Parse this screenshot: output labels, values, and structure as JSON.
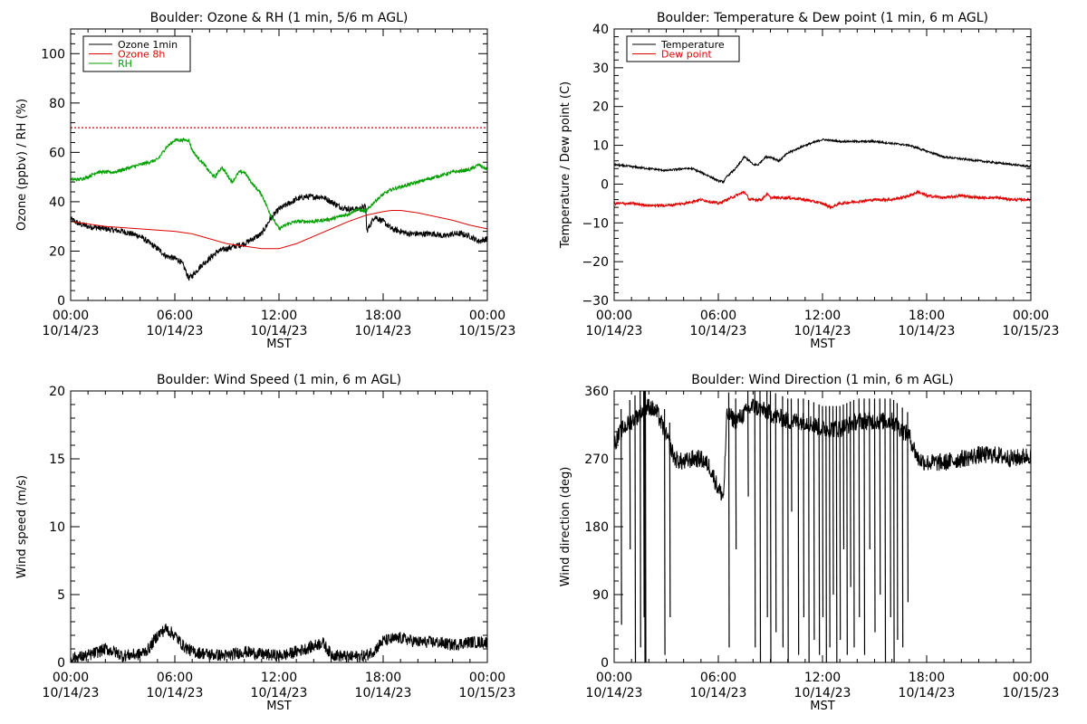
{
  "chart_data": [
    {
      "type": "line",
      "title": "Boulder: Ozone & RH (1 min, 5/6 m AGL)",
      "xlabel": "MST",
      "ylabel": "Ozone (ppbv) / RH (%)",
      "xlim": [
        "10/14/23 00:00",
        "10/15/23 00:00"
      ],
      "ylim": [
        0,
        110
      ],
      "x_ticks": [
        {
          "time": "00:00",
          "date": "10/14/23"
        },
        {
          "time": "06:00",
          "date": "10/14/23"
        },
        {
          "time": "12:00",
          "date": "10/14/23"
        },
        {
          "time": "18:00",
          "date": "10/14/23"
        },
        {
          "time": "00:00",
          "date": "10/15/23"
        }
      ],
      "y_ticks": [
        "0",
        "20",
        "40",
        "60",
        "80",
        "100"
      ],
      "legend_position": "top-left",
      "reference_line": {
        "value": 70,
        "style": "dotted",
        "color": "#e00000"
      },
      "series": [
        {
          "name": "Ozone 1min",
          "color": "#000000",
          "noise": 1.2,
          "x": [
            0,
            0.5,
            1,
            2,
            3,
            4,
            5,
            5.5,
            6,
            6.3,
            6.5,
            6.8,
            7,
            7.5,
            8,
            8.5,
            9,
            9.5,
            10,
            10.5,
            11,
            11.5,
            12,
            12.5,
            13,
            13.5,
            14,
            14.5,
            15,
            15.5,
            16,
            16.5,
            17,
            17.05,
            17.5,
            18,
            18.5,
            19,
            19.5,
            20,
            20.5,
            21,
            21.5,
            22,
            22.5,
            23,
            23.5,
            24
          ],
          "y": [
            33,
            31,
            30,
            29,
            28,
            26,
            21,
            18,
            17,
            16,
            14,
            9,
            10,
            14,
            17,
            20,
            21,
            22,
            23,
            25,
            27,
            33,
            37,
            39,
            41,
            42,
            42,
            42,
            40,
            38,
            37,
            37,
            38,
            28,
            34,
            32,
            29,
            28,
            27,
            27,
            27,
            27,
            26,
            27,
            27,
            26,
            24,
            25
          ]
        },
        {
          "name": "Ozone 8h",
          "color": "#e00000",
          "noise": 0,
          "x": [
            0,
            2,
            4,
            6,
            7,
            8,
            9,
            10,
            11,
            12,
            13,
            14,
            15,
            16,
            17,
            18,
            18.5,
            19,
            20,
            21,
            22,
            23,
            24
          ],
          "y": [
            32,
            30,
            29,
            28,
            27,
            25,
            23,
            22,
            21,
            21,
            23,
            26,
            29,
            32,
            34.5,
            36,
            36.5,
            36.5,
            35.5,
            34,
            32.5,
            30.5,
            29
          ]
        },
        {
          "name": "RH",
          "color": "#00a000",
          "noise": 0.7,
          "x": [
            0,
            0.5,
            1,
            1.5,
            2,
            2.5,
            3,
            3.5,
            4,
            4.5,
            5,
            5.5,
            6,
            6.5,
            6.8,
            7,
            7.3,
            7.7,
            8,
            8.3,
            8.7,
            9,
            9.3,
            9.7,
            10,
            10.5,
            11,
            11.5,
            12,
            12.5,
            13,
            14,
            15,
            16,
            16.5,
            17,
            17.5,
            18,
            18.5,
            19,
            20,
            21,
            22,
            23,
            23.5,
            24
          ],
          "y": [
            49,
            49,
            50,
            52,
            52,
            52,
            53,
            54,
            55,
            56,
            57,
            62,
            65,
            65,
            65,
            61,
            58,
            55,
            52,
            50,
            54,
            51,
            48,
            52,
            52,
            47,
            43,
            35,
            29,
            31,
            32,
            32,
            33,
            35,
            37,
            36,
            40,
            43,
            45,
            46,
            48,
            50,
            52,
            53,
            55,
            53
          ]
        }
      ]
    },
    {
      "type": "line",
      "title": "Boulder: Temperature & Dew point (1 min, 6 m AGL)",
      "xlabel": "MST",
      "ylabel": "Temperature / Dew point (C)",
      "xlim": [
        "10/14/23 00:00",
        "10/15/23 00:00"
      ],
      "ylim": [
        -30,
        40
      ],
      "x_ticks": [
        {
          "time": "00:00",
          "date": "10/14/23"
        },
        {
          "time": "06:00",
          "date": "10/14/23"
        },
        {
          "time": "12:00",
          "date": "10/14/23"
        },
        {
          "time": "18:00",
          "date": "10/14/23"
        },
        {
          "time": "00:00",
          "date": "10/15/23"
        }
      ],
      "y_ticks": [
        "−30",
        "−20",
        "−10",
        "0",
        "10",
        "20",
        "30",
        "40"
      ],
      "legend_position": "top-left",
      "series": [
        {
          "name": "Temperature",
          "color": "#000000",
          "noise": 0.25,
          "x": [
            0,
            1,
            2,
            3,
            4,
            4.5,
            5,
            5.5,
            6,
            6.3,
            6.5,
            7,
            7.5,
            7.8,
            8,
            8.3,
            8.7,
            9,
            9.5,
            10,
            11,
            12,
            13,
            14,
            15,
            16,
            17,
            18,
            19,
            20,
            21,
            22,
            23,
            24
          ],
          "y": [
            5,
            4.5,
            4,
            3.5,
            4,
            4,
            3,
            2,
            0.8,
            0.6,
            2,
            4,
            7,
            6,
            5,
            5,
            7,
            7,
            6,
            8,
            10,
            11.5,
            11,
            11,
            11,
            10.5,
            10,
            8.5,
            7,
            6.5,
            6,
            5.5,
            5,
            4.5
          ]
        },
        {
          "name": "Dew point",
          "color": "#e00000",
          "noise": 0.35,
          "x": [
            0,
            1,
            2,
            3,
            4,
            5,
            5.5,
            6,
            6.5,
            7,
            7.5,
            7.8,
            8,
            8.5,
            8.8,
            9,
            10,
            11,
            12,
            12.5,
            13,
            14,
            15,
            16,
            17,
            17.5,
            18,
            19,
            20,
            21,
            22,
            23,
            24
          ],
          "y": [
            -5,
            -5,
            -5.5,
            -5.5,
            -5,
            -4,
            -4.5,
            -5,
            -4,
            -3,
            -2,
            -4,
            -4,
            -4,
            -2.5,
            -3.5,
            -3.5,
            -4,
            -5,
            -6,
            -5,
            -4.5,
            -4,
            -4,
            -3,
            -2,
            -3,
            -3.5,
            -3,
            -3.5,
            -3.5,
            -4,
            -4
          ]
        }
      ]
    },
    {
      "type": "line",
      "title": "Boulder: Wind Speed (1 min, 6 m AGL)",
      "xlabel": "MST",
      "ylabel": "Wind speed (m/s)",
      "xlim": [
        "10/14/23 00:00",
        "10/15/23 00:00"
      ],
      "ylim": [
        0,
        20
      ],
      "x_ticks": [
        {
          "time": "00:00",
          "date": "10/14/23"
        },
        {
          "time": "06:00",
          "date": "10/14/23"
        },
        {
          "time": "12:00",
          "date": "10/14/23"
        },
        {
          "time": "18:00",
          "date": "10/14/23"
        },
        {
          "time": "00:00",
          "date": "10/15/23"
        }
      ],
      "y_ticks": [
        "0",
        "5",
        "10",
        "15",
        "20"
      ],
      "series": [
        {
          "name": "",
          "color": "#000000",
          "noise": 0.45,
          "clip_min": 0,
          "x": [
            0,
            1,
            2,
            2.5,
            3,
            4,
            4.5,
            5,
            5.5,
            6,
            6.5,
            7,
            8,
            9,
            10,
            11,
            12,
            12.5,
            13,
            14,
            14.5,
            15,
            16,
            17,
            17.5,
            18,
            19,
            20,
            21,
            22,
            23,
            24
          ],
          "y": [
            0.3,
            0.5,
            1,
            0.8,
            0.5,
            0.6,
            1,
            2,
            2.5,
            2,
            1.2,
            0.8,
            0.6,
            0.5,
            0.8,
            0.6,
            0.5,
            0.6,
            0.8,
            1.2,
            1.5,
            0.6,
            0.4,
            0.5,
            0.9,
            1.6,
            1.8,
            1.5,
            1.5,
            1.3,
            1.5,
            1.5
          ]
        }
      ]
    },
    {
      "type": "line",
      "title": "Boulder: Wind Direction (1 min, 6 m AGL)",
      "xlabel": "MST",
      "ylabel": "Wind direction (deg)",
      "xlim": [
        "10/14/23 00:00",
        "10/15/23 00:00"
      ],
      "ylim": [
        0,
        360
      ],
      "x_ticks": [
        {
          "time": "00:00",
          "date": "10/14/23"
        },
        {
          "time": "06:00",
          "date": "10/14/23"
        },
        {
          "time": "12:00",
          "date": "10/14/23"
        },
        {
          "time": "18:00",
          "date": "10/14/23"
        },
        {
          "time": "00:00",
          "date": "10/15/23"
        }
      ],
      "y_ticks": [
        "0",
        "90",
        "180",
        "270",
        "360"
      ],
      "series": [
        {
          "name": "",
          "color": "#000000",
          "noise": 12,
          "clip_min": 0,
          "clip_max": 360,
          "x": [
            0,
            0.5,
            1,
            1.5,
            2,
            2.5,
            3,
            3.5,
            4,
            4.5,
            5,
            5.5,
            6,
            6.3,
            6.5,
            7,
            7.5,
            8,
            9,
            10,
            11,
            12,
            13,
            14,
            15,
            16,
            17,
            17.5,
            18,
            19,
            20,
            21,
            22,
            23,
            24
          ],
          "y": [
            290,
            310,
            320,
            330,
            340,
            330,
            300,
            270,
            265,
            270,
            270,
            260,
            230,
            220,
            330,
            320,
            330,
            340,
            330,
            320,
            320,
            310,
            310,
            320,
            320,
            320,
            300,
            270,
            265,
            265,
            270,
            275,
            275,
            270,
            275
          ]
        }
      ],
      "drops": [
        {
          "x": 0.4,
          "y": 50
        },
        {
          "x": 0.9,
          "y": 150
        },
        {
          "x": 1.2,
          "y": 0
        },
        {
          "x": 1.5,
          "y": 20
        },
        {
          "x": 1.7,
          "y": 60
        },
        {
          "x": 1.75,
          "y": 0
        },
        {
          "x": 1.8,
          "y": 0
        },
        {
          "x": 2.9,
          "y": 10
        },
        {
          "x": 3.2,
          "y": 60
        },
        {
          "x": 6.6,
          "y": 20
        },
        {
          "x": 7.0,
          "y": 150
        },
        {
          "x": 7.7,
          "y": 220
        },
        {
          "x": 8.1,
          "y": 20
        },
        {
          "x": 8.4,
          "y": 0
        },
        {
          "x": 8.8,
          "y": 60
        },
        {
          "x": 9.0,
          "y": 0
        },
        {
          "x": 9.3,
          "y": 40
        },
        {
          "x": 9.7,
          "y": 20
        },
        {
          "x": 10.0,
          "y": 0
        },
        {
          "x": 10.2,
          "y": 200
        },
        {
          "x": 10.6,
          "y": 10
        },
        {
          "x": 10.9,
          "y": 60
        },
        {
          "x": 11.2,
          "y": 0
        },
        {
          "x": 11.5,
          "y": 30
        },
        {
          "x": 11.8,
          "y": 10
        },
        {
          "x": 12.0,
          "y": 60
        },
        {
          "x": 12.2,
          "y": 0
        },
        {
          "x": 12.4,
          "y": 20
        },
        {
          "x": 12.6,
          "y": 90
        },
        {
          "x": 12.8,
          "y": 0
        },
        {
          "x": 13.0,
          "y": 30
        },
        {
          "x": 13.2,
          "y": 150
        },
        {
          "x": 13.4,
          "y": 10
        },
        {
          "x": 13.6,
          "y": 100
        },
        {
          "x": 13.8,
          "y": 20
        },
        {
          "x": 14.1,
          "y": 60
        },
        {
          "x": 14.4,
          "y": 10
        },
        {
          "x": 14.7,
          "y": 150
        },
        {
          "x": 15.0,
          "y": 40
        },
        {
          "x": 15.3,
          "y": 90
        },
        {
          "x": 15.6,
          "y": 0
        },
        {
          "x": 15.9,
          "y": 60
        },
        {
          "x": 16.1,
          "y": 0
        },
        {
          "x": 16.3,
          "y": 30
        },
        {
          "x": 16.6,
          "y": 20
        },
        {
          "x": 16.9,
          "y": 80
        }
      ]
    }
  ]
}
